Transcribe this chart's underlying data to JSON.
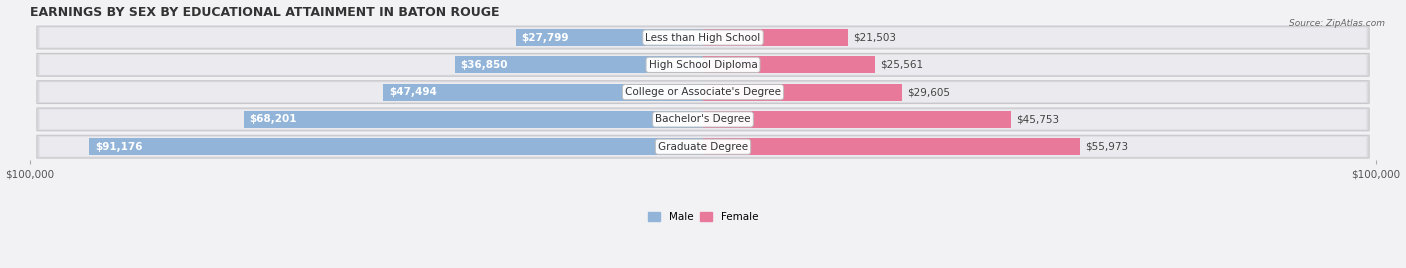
{
  "title": "EARNINGS BY SEX BY EDUCATIONAL ATTAINMENT IN BATON ROUGE",
  "source": "Source: ZipAtlas.com",
  "categories": [
    "Less than High School",
    "High School Diploma",
    "College or Associate's Degree",
    "Bachelor's Degree",
    "Graduate Degree"
  ],
  "male_values": [
    27799,
    36850,
    47494,
    68201,
    91176
  ],
  "female_values": [
    21503,
    25561,
    29605,
    45753,
    55973
  ],
  "male_color": "#92b4d8",
  "female_color": "#e8799a",
  "axis_max": 100000,
  "bar_height": 0.62,
  "row_bg_color": "#e0e0e4",
  "row_inner_color": "#f0f0f5",
  "title_fontsize": 9.0,
  "label_fontsize": 7.5,
  "tick_fontsize": 7.5,
  "value_inside_threshold": 15000
}
